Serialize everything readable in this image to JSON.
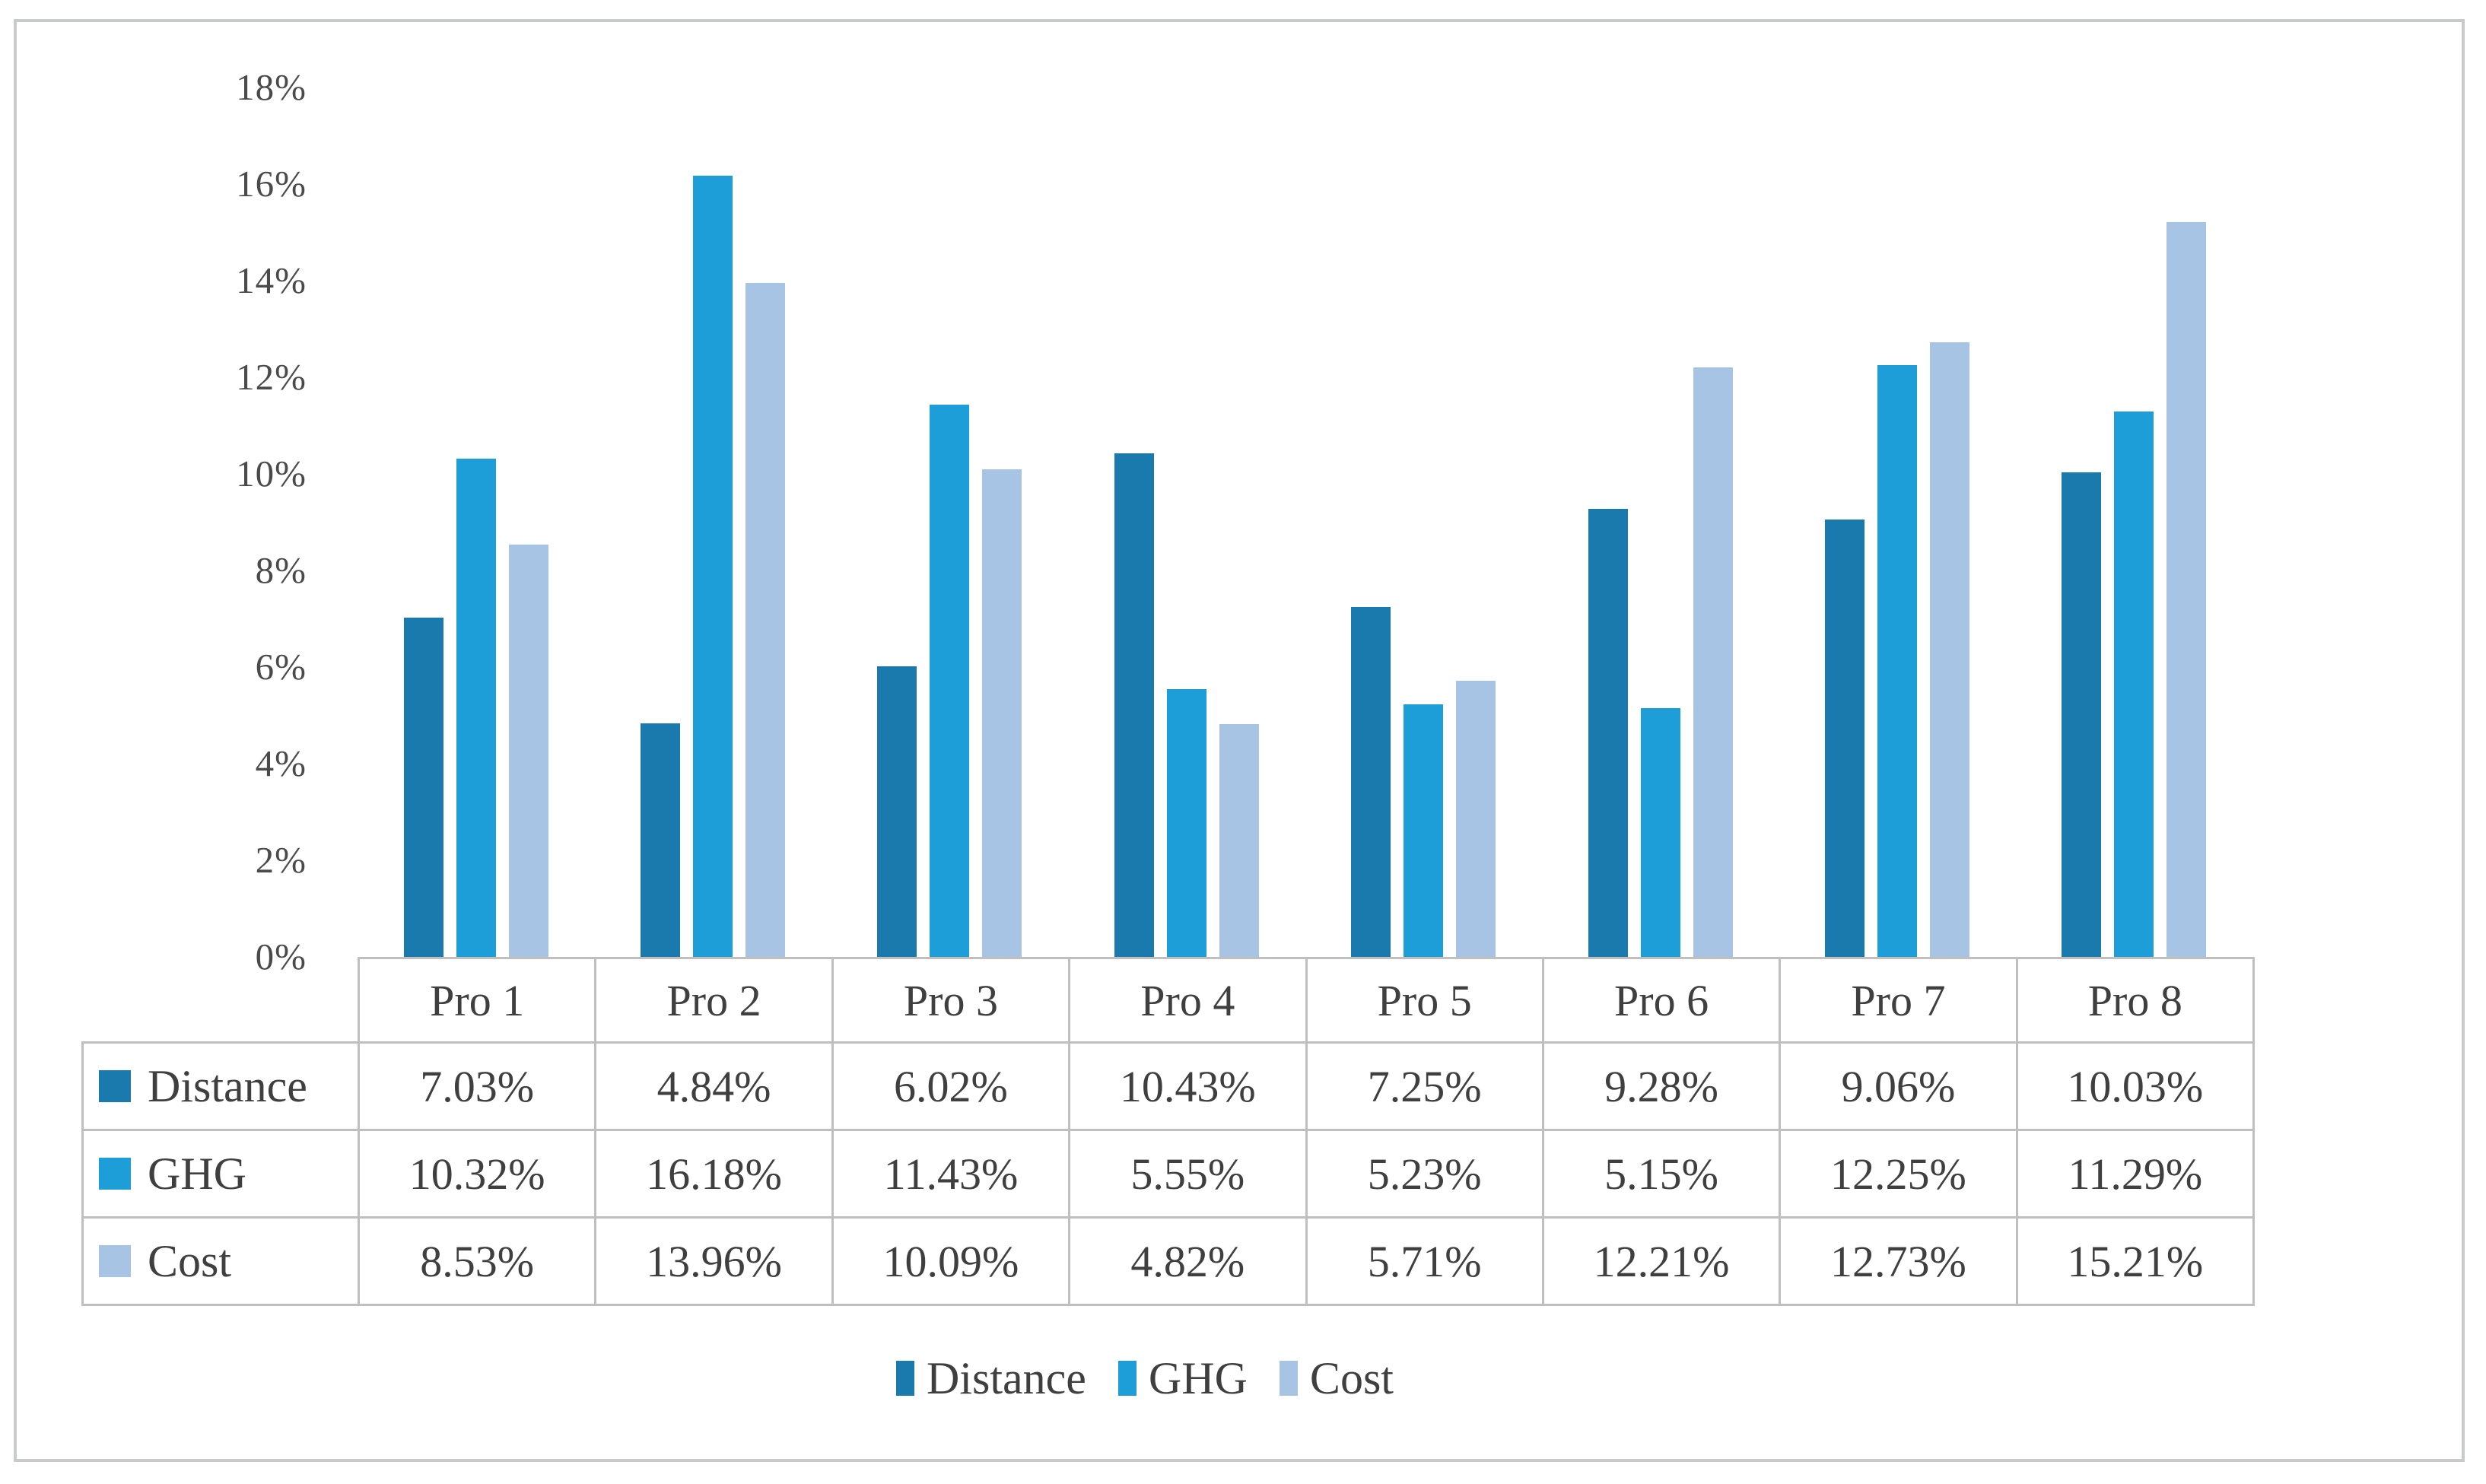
{
  "figure": {
    "background": "#FFFFFF",
    "border_color": "#C9CACB"
  },
  "chart_data": {
    "type": "bar",
    "title": "",
    "xlabel": "",
    "ylabel": "",
    "categories": [
      "Pro 1",
      "Pro 2",
      "Pro 3",
      "Pro 4",
      "Pro 5",
      "Pro 6",
      "Pro 7",
      "Pro 8"
    ],
    "series": [
      {
        "name": "Distance",
        "color": "#1A79AD",
        "values": [
          7.03,
          4.84,
          6.02,
          10.43,
          7.25,
          9.28,
          9.06,
          10.03
        ]
      },
      {
        "name": "GHG",
        "color": "#1D9ED9",
        "values": [
          10.32,
          16.18,
          11.43,
          5.55,
          5.23,
          5.15,
          12.25,
          11.29
        ]
      },
      {
        "name": "Cost",
        "color": "#A7C4E4",
        "values": [
          8.53,
          13.96,
          10.09,
          4.82,
          5.71,
          12.21,
          12.73,
          15.21
        ]
      }
    ],
    "ylim": [
      0,
      18
    ],
    "y_ticks": [
      {
        "v": 0,
        "label": "0%"
      },
      {
        "v": 2,
        "label": "2%"
      },
      {
        "v": 4,
        "label": "4%"
      },
      {
        "v": 6,
        "label": "6%"
      },
      {
        "v": 8,
        "label": "8%"
      },
      {
        "v": 10,
        "label": "10%"
      },
      {
        "v": 12,
        "label": "12%"
      },
      {
        "v": 14,
        "label": "14%"
      },
      {
        "v": 16,
        "label": "16%"
      },
      {
        "v": 18,
        "label": "18%"
      }
    ],
    "grid": false,
    "legend_position": "bottom",
    "legend": [
      "Distance",
      "GHG",
      "Cost"
    ],
    "data_table": {
      "column_headers": [
        "Pro 1",
        "Pro 2",
        "Pro 3",
        "Pro 4",
        "Pro 5",
        "Pro 6",
        "Pro 7",
        "Pro 8"
      ],
      "rows": [
        {
          "label": "Distance",
          "values": [
            "7.03%",
            "4.84%",
            "6.02%",
            "10.43%",
            "7.25%",
            "9.28%",
            "9.06%",
            "10.03%"
          ]
        },
        {
          "label": "GHG",
          "values": [
            "10.32%",
            "16.18%",
            "11.43%",
            "5.55%",
            "5.23%",
            "5.15%",
            "12.25%",
            "11.29%"
          ]
        },
        {
          "label": "Cost",
          "values": [
            "8.53%",
            "13.96%",
            "10.09%",
            "4.82%",
            "5.71%",
            "12.21%",
            "12.73%",
            "15.21%"
          ]
        }
      ]
    }
  },
  "colors": {
    "table_text": "#3F3F3F",
    "axis_text": "#4A4A4A",
    "table_border": "#BFBFBF"
  }
}
